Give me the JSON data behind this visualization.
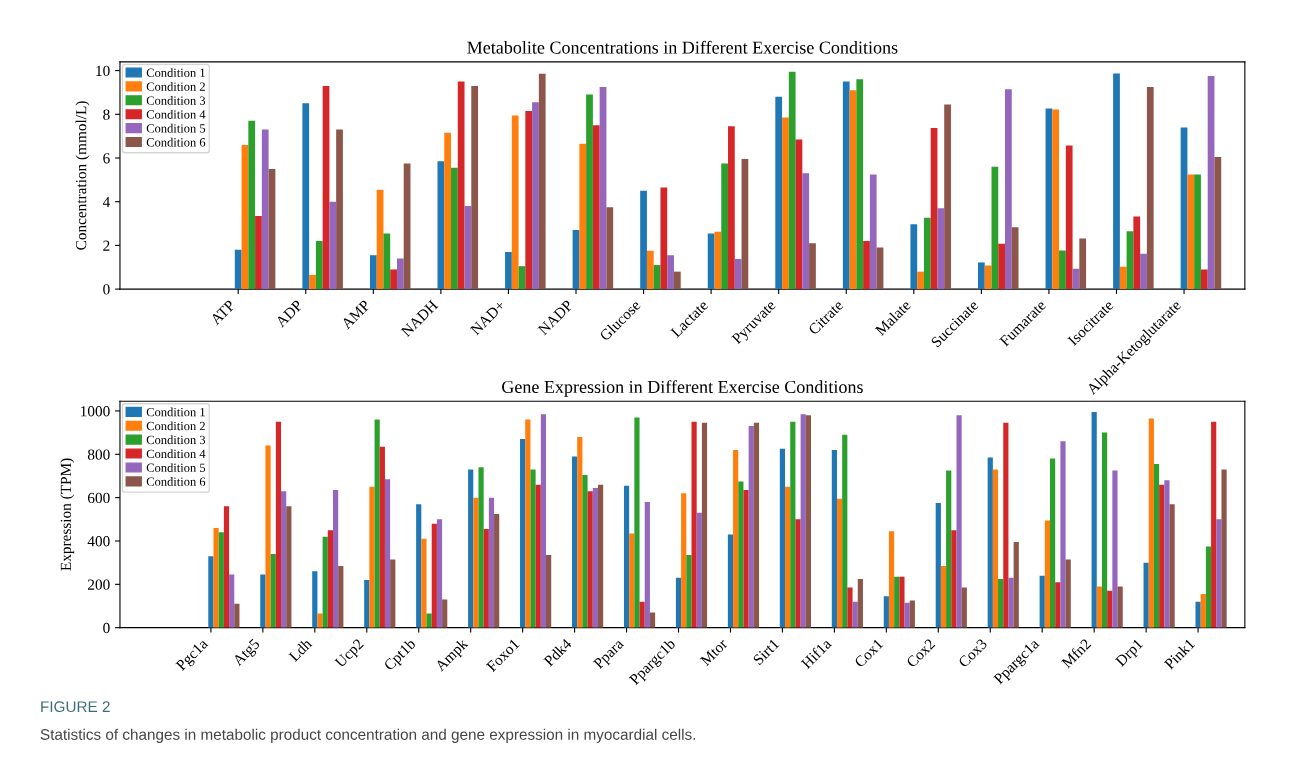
{
  "chart_data": [
    {
      "type": "bar",
      "title": "Metabolite Concentrations in Different Exercise Conditions",
      "ylabel": "Concentration (mmol/L)",
      "categories": [
        "ATP",
        "ADP",
        "AMP",
        "NADH",
        "NAD+",
        "NADP",
        "Glucose",
        "Lactate",
        "Pyruvate",
        "Citrate",
        "Malate",
        "Succinate",
        "Fumarate",
        "Isocitrate",
        "Alpha-Ketoglutarate"
      ],
      "series": [
        {
          "name": "Condition 1",
          "color": "#1f77b4",
          "values": [
            1.8,
            8.5,
            1.55,
            5.85,
            1.7,
            2.7,
            4.5,
            2.55,
            8.8,
            9.5,
            2.97,
            1.22,
            8.27,
            9.87,
            7.4
          ]
        },
        {
          "name": "Condition 2",
          "color": "#ff7f0e",
          "values": [
            6.6,
            0.65,
            4.55,
            7.15,
            7.95,
            6.65,
            1.75,
            2.62,
            7.85,
            9.1,
            0.8,
            1.08,
            8.22,
            1.02,
            5.25
          ]
        },
        {
          "name": "Condition 3",
          "color": "#2ca02c",
          "values": [
            7.7,
            2.2,
            2.55,
            5.55,
            1.05,
            8.9,
            1.1,
            5.75,
            9.95,
            9.6,
            3.27,
            5.6,
            1.77,
            2.65,
            5.25
          ]
        },
        {
          "name": "Condition 4",
          "color": "#d62728",
          "values": [
            3.35,
            9.3,
            0.9,
            9.5,
            8.15,
            7.5,
            4.65,
            7.45,
            6.85,
            2.2,
            7.37,
            2.07,
            6.57,
            3.32,
            0.9
          ]
        },
        {
          "name": "Condition 5",
          "color": "#9467bd",
          "values": [
            7.3,
            4.0,
            1.4,
            3.8,
            8.55,
            9.25,
            1.55,
            1.38,
            5.3,
            5.25,
            3.7,
            9.15,
            0.93,
            1.62,
            9.75
          ]
        },
        {
          "name": "Condition 6",
          "color": "#8c564b",
          "values": [
            5.5,
            7.3,
            5.75,
            9.3,
            9.85,
            3.75,
            0.8,
            5.95,
            2.1,
            1.9,
            8.45,
            2.83,
            2.32,
            9.25,
            6.05
          ]
        }
      ],
      "ylim": [
        0,
        10.4
      ],
      "yticks": [
        0,
        2,
        4,
        6,
        8,
        10
      ],
      "legend": "top left",
      "grid": false
    },
    {
      "type": "bar",
      "title": "Gene Expression in Different Exercise Conditions",
      "ylabel": "Expression (TPM)",
      "categories": [
        "Pgc1a",
        "Atg5",
        "Ldh",
        "Ucp2",
        "Cpt1b",
        "Ampk",
        "Foxo1",
        "Pdk4",
        "Ppara",
        "Ppargc1b",
        "Mtor",
        "Sirt1",
        "Hif1a",
        "Cox1",
        "Cox2",
        "Cox3",
        "Ppargc1a",
        "Mfn2",
        "Drp1",
        "Pink1"
      ],
      "series": [
        {
          "name": "Condition 1",
          "color": "#1f77b4",
          "values": [
            330,
            245,
            260,
            220,
            570,
            730,
            870,
            790,
            655,
            230,
            430,
            825,
            820,
            145,
            575,
            785,
            240,
            995,
            300,
            120
          ]
        },
        {
          "name": "Condition 2",
          "color": "#ff7f0e",
          "values": [
            460,
            840,
            65,
            650,
            410,
            600,
            960,
            880,
            435,
            620,
            820,
            650,
            595,
            445,
            285,
            730,
            495,
            190,
            965,
            155
          ]
        },
        {
          "name": "Condition 3",
          "color": "#2ca02c",
          "values": [
            440,
            340,
            420,
            960,
            65,
            740,
            730,
            705,
            970,
            335,
            675,
            950,
            890,
            235,
            725,
            225,
            780,
            900,
            755,
            375
          ]
        },
        {
          "name": "Condition 4",
          "color": "#d62728",
          "values": [
            560,
            950,
            450,
            835,
            480,
            455,
            660,
            630,
            120,
            950,
            635,
            500,
            185,
            235,
            450,
            945,
            210,
            170,
            660,
            950
          ]
        },
        {
          "name": "Condition 5",
          "color": "#9467bd",
          "values": [
            245,
            630,
            635,
            685,
            500,
            600,
            985,
            645,
            580,
            530,
            930,
            985,
            120,
            115,
            980,
            230,
            860,
            725,
            680,
            500
          ]
        },
        {
          "name": "Condition 6",
          "color": "#8c564b",
          "values": [
            110,
            560,
            285,
            315,
            130,
            525,
            335,
            660,
            70,
            945,
            945,
            980,
            225,
            125,
            185,
            395,
            315,
            190,
            570,
            730
          ]
        }
      ],
      "ylim": [
        0,
        1045
      ],
      "yticks": [
        0,
        200,
        400,
        600,
        800,
        1000
      ],
      "legend": "top left",
      "grid": false,
      "annotations": [
        "FIGURE 2",
        "Statistics of changes in metabolic product concentration and gene expression in myocardial cells."
      ]
    }
  ]
}
